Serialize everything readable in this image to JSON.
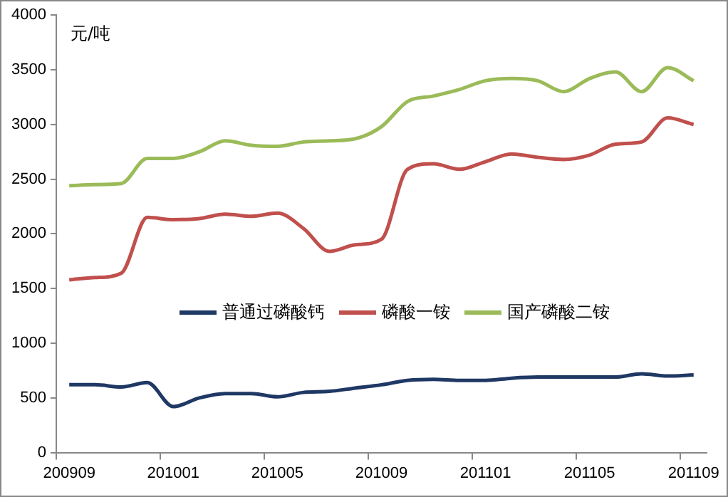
{
  "chart_data": {
    "type": "line",
    "ylabel": "元/吨",
    "categories": [
      "200909",
      null,
      null,
      null,
      "201001",
      null,
      null,
      null,
      "201005",
      null,
      null,
      null,
      "201009",
      null,
      null,
      null,
      "201101",
      null,
      null,
      null,
      "201105",
      null,
      null,
      null,
      "201109"
    ],
    "series": [
      {
        "name": "普通过磷酸钙",
        "color": "#1f3864",
        "values": [
          620,
          620,
          600,
          640,
          420,
          500,
          540,
          540,
          510,
          550,
          560,
          590,
          620,
          660,
          670,
          660,
          660,
          680,
          690,
          690,
          690,
          690,
          720,
          700,
          710
        ]
      },
      {
        "name": "磷酸一铵",
        "color": "#c0504d",
        "values": [
          1580,
          1600,
          1640,
          2150,
          2130,
          2140,
          2180,
          2160,
          2190,
          2050,
          1840,
          1900,
          1950,
          2590,
          2640,
          2590,
          2660,
          2730,
          2700,
          2680,
          2720,
          2820,
          2840,
          3060,
          3000
        ]
      },
      {
        "name": "国产磷酸二铵",
        "color": "#9bbb59",
        "values": [
          2440,
          2450,
          2460,
          2690,
          2690,
          2750,
          2850,
          2810,
          2800,
          2840,
          2850,
          2870,
          2980,
          3210,
          3260,
          3320,
          3400,
          3420,
          3400,
          3300,
          3420,
          3480,
          3300,
          3520,
          3400
        ]
      }
    ],
    "ylim": [
      0,
      4000
    ],
    "yticks": [
      0,
      500,
      1000,
      1500,
      2000,
      2500,
      3000,
      3500,
      4000
    ],
    "grid": false,
    "legend": "center",
    "marker": "none",
    "line_style": "solid"
  }
}
